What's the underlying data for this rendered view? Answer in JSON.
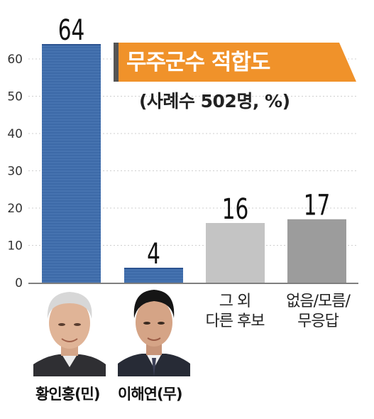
{
  "chart_data": {
    "type": "bar",
    "title": "무주군수 적합도",
    "subtitle": "(사례수 502명, %)",
    "categories": [
      "황인홍(민)",
      "이해연(무)",
      "그 외 다른 후보",
      "없음/모름/무응답"
    ],
    "values": [
      64,
      4,
      16,
      17
    ],
    "value_labels": [
      "64",
      "4",
      "16",
      "17"
    ],
    "bar_colors": [
      "#3d6aa8",
      "#3d6aa8",
      "#c4c4c4",
      "#9c9c9c"
    ],
    "ylim": [
      0,
      64
    ],
    "yticks": [
      0,
      10,
      20,
      30,
      40,
      50,
      60
    ],
    "ytick_labels": [
      "0",
      "10",
      "20",
      "30",
      "40",
      "50",
      "60"
    ],
    "grid": true,
    "accent_color": "#f0922a"
  },
  "candidates": [
    {
      "name": "황인홍(민)"
    },
    {
      "name": "이해연(무)"
    }
  ],
  "other_labels": {
    "other_line1": "그 외",
    "other_line2": "다른 후보",
    "none_line1": "없음/모름/",
    "none_line2": "무응답"
  }
}
